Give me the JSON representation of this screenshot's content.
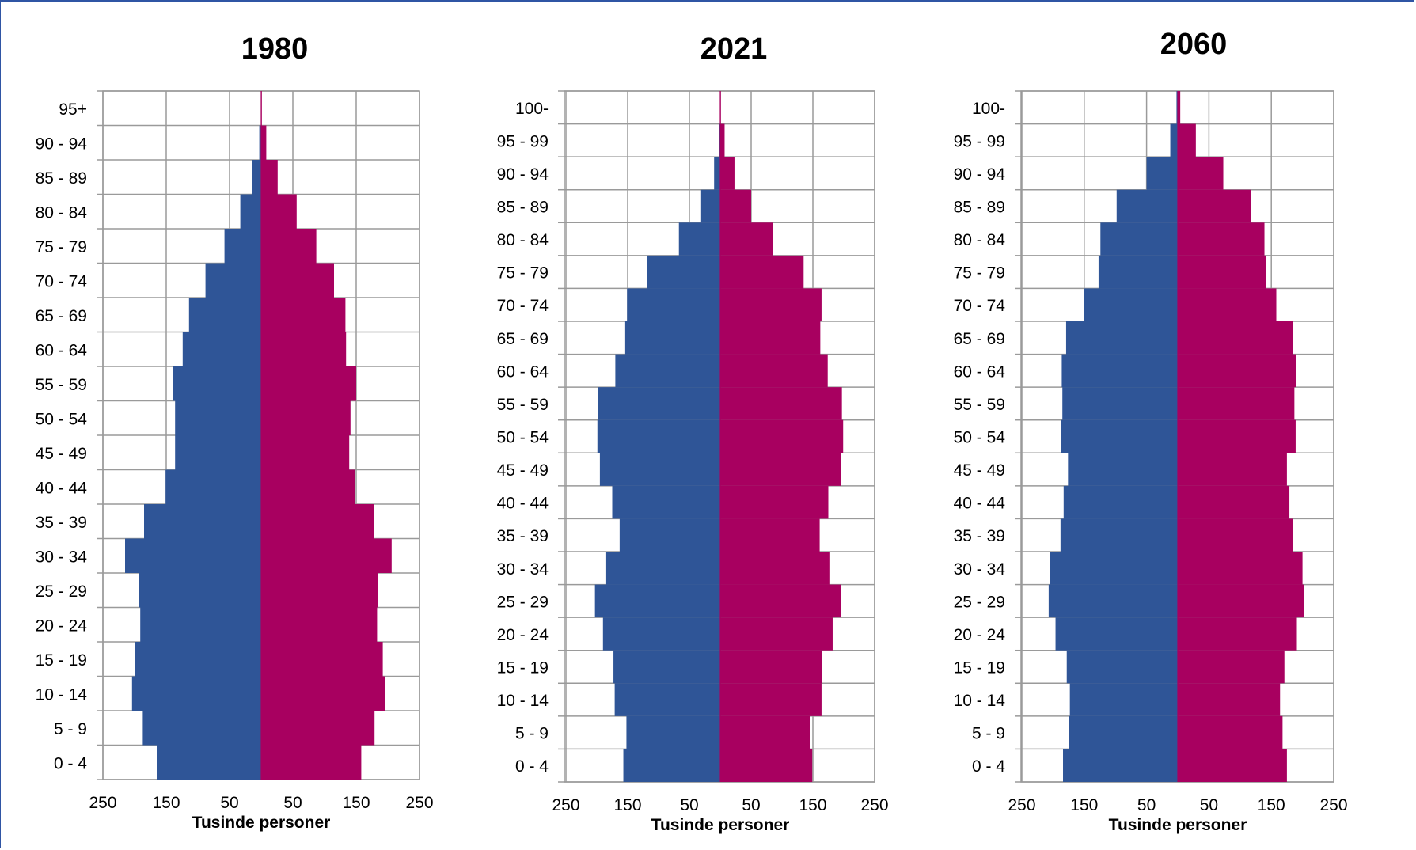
{
  "colors": {
    "male": "#2f5597",
    "female": "#a80060",
    "grid": "#9a9a9a",
    "frame": "#2f55a4"
  },
  "chart_data": [
    {
      "type": "bar",
      "title": "1980",
      "xlabel": "Tusinde personer",
      "xlim": [
        -250,
        250
      ],
      "x_tick_labels": [
        "250",
        "150",
        "50",
        "50",
        "150",
        "250"
      ],
      "grid": true,
      "categories": [
        "0 - 4",
        "5 - 9",
        "10 - 14",
        "15 - 19",
        "20 - 24",
        "25 - 29",
        "30 - 34",
        "35 - 39",
        "40 - 44",
        "45 - 49",
        "50 - 54",
        "55 - 59",
        "60 - 64",
        "65 - 69",
        "70 - 74",
        "75 - 79",
        "80 - 84",
        "85 - 89",
        "90 - 94",
        "95+"
      ],
      "series": [
        {
          "values": [
            165,
            187,
            204,
            200,
            191,
            193,
            215,
            185,
            151,
            136,
            136,
            140,
            124,
            114,
            88,
            58,
            33,
            14,
            3,
            0.5
          ]
        },
        {
          "values": [
            158,
            179,
            195,
            192,
            183,
            185,
            206,
            178,
            148,
            139,
            141,
            150,
            134,
            133,
            115,
            87,
            56,
            26,
            8,
            1
          ]
        }
      ]
    },
    {
      "type": "bar",
      "title": "2021",
      "xlabel": "Tusinde personer",
      "xlim": [
        -250,
        250
      ],
      "x_tick_labels": [
        "250",
        "150",
        "50",
        "50",
        "150",
        "250"
      ],
      "grid": true,
      "categories": [
        "0 - 4",
        "5 - 9",
        "10 - 14",
        "15 - 19",
        "20 - 24",
        "25 - 29",
        "30 - 34",
        "35 - 39",
        "40 - 44",
        "45 - 49",
        "50 - 54",
        "55 - 59",
        "60 - 64",
        "65 - 69",
        "70 - 74",
        "75 - 79",
        "80 - 84",
        "85 - 89",
        "90 - 94",
        "95 - 99",
        "100-"
      ],
      "series": [
        {
          "values": [
            157,
            152,
            171,
            173,
            190,
            203,
            186,
            163,
            175,
            195,
            199,
            198,
            170,
            154,
            151,
            119,
            67,
            31,
            10,
            2,
            0.3
          ]
        },
        {
          "values": [
            149,
            146,
            164,
            165,
            182,
            195,
            178,
            161,
            175,
            196,
            199,
            197,
            174,
            162,
            164,
            135,
            85,
            50,
            23,
            7,
            1
          ]
        }
      ]
    },
    {
      "type": "bar",
      "title": "2060",
      "xlabel": "Tusinde personer",
      "xlim": [
        -250,
        250
      ],
      "x_tick_labels": [
        "250",
        "150",
        "50",
        "50",
        "150",
        "250"
      ],
      "grid": true,
      "categories": [
        "0 - 4",
        "5 - 9",
        "10 - 14",
        "15 - 19",
        "20 - 24",
        "25 - 29",
        "30 - 34",
        "35 - 39",
        "40 - 44",
        "45 - 49",
        "50 - 54",
        "55 - 59",
        "60 - 64",
        "65 - 69",
        "70 - 74",
        "75 - 79",
        "80 - 84",
        "85 - 89",
        "90 - 94",
        "95 - 99",
        "100-"
      ],
      "series": [
        {
          "values": [
            184,
            175,
            173,
            178,
            196,
            207,
            205,
            188,
            183,
            176,
            187,
            185,
            186,
            179,
            150,
            127,
            124,
            98,
            50,
            12,
            2
          ]
        },
        {
          "values": [
            175,
            168,
            164,
            171,
            191,
            202,
            200,
            184,
            179,
            175,
            189,
            187,
            190,
            185,
            158,
            141,
            139,
            117,
            73,
            29,
            4
          ]
        }
      ]
    }
  ]
}
